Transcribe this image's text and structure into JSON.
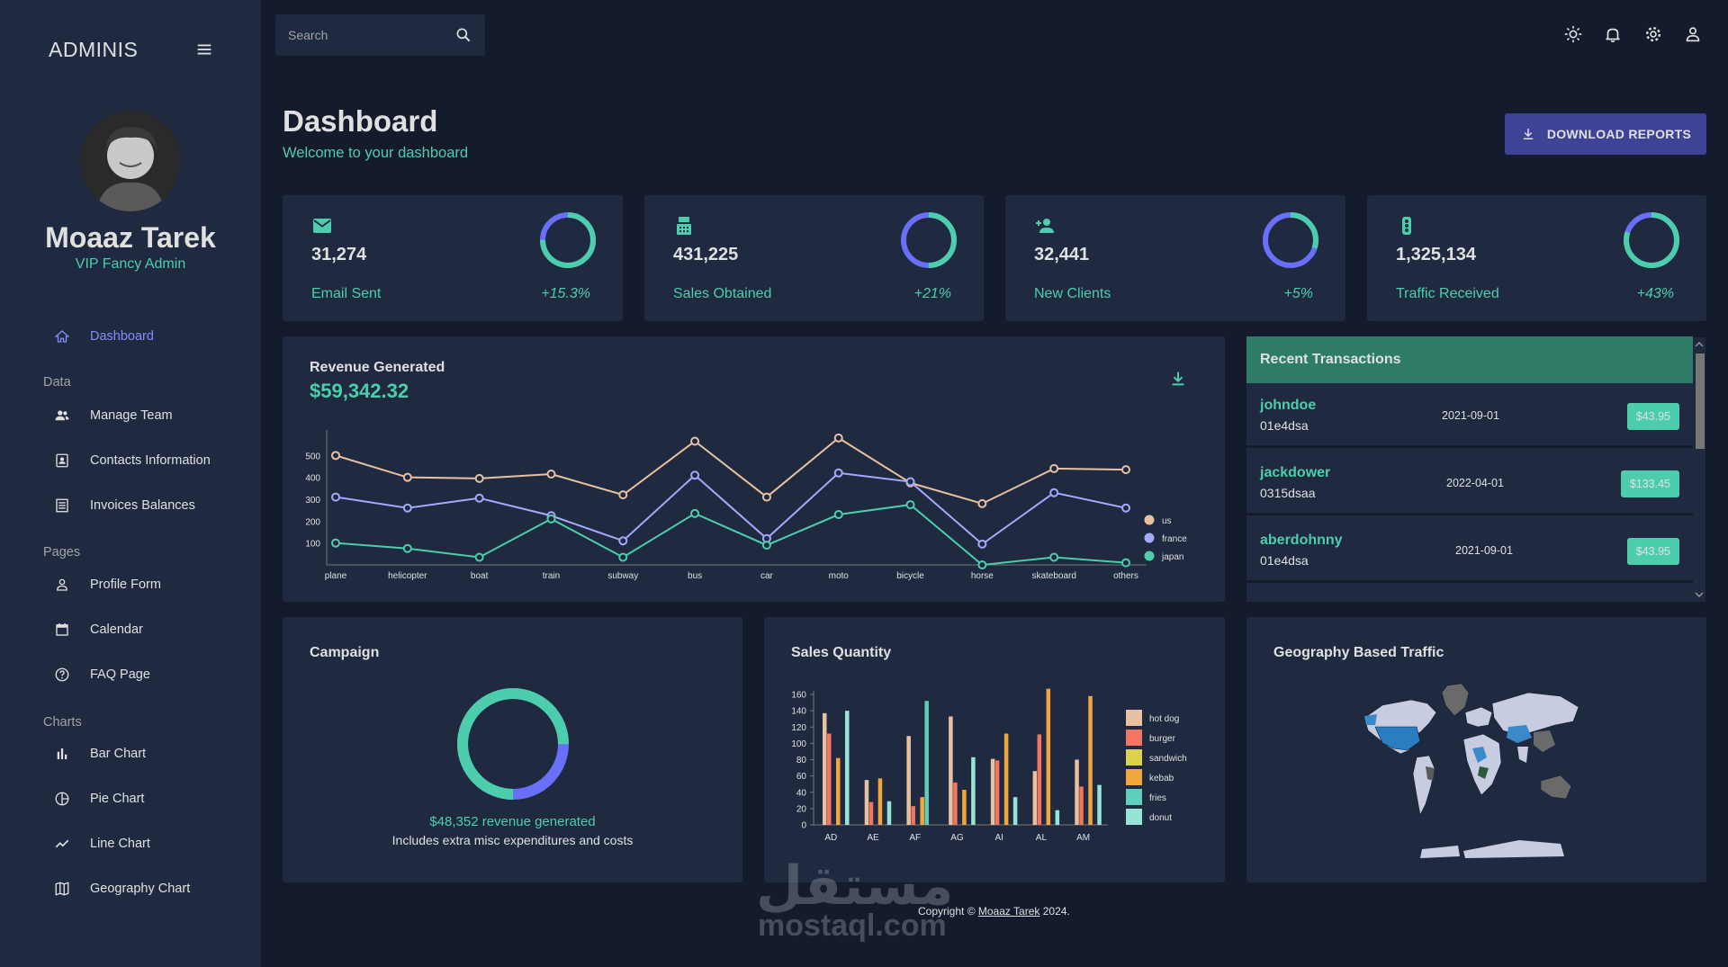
{
  "sidebar": {
    "brand": "ADMINIS",
    "user": {
      "name": "Moaaz Tarek",
      "role": "VIP Fancy Admin"
    },
    "items": [
      {
        "label": "Dashboard",
        "icon": "home-icon",
        "active": true
      },
      {
        "section": "Data"
      },
      {
        "label": "Manage Team",
        "icon": "people-icon"
      },
      {
        "label": "Contacts Information",
        "icon": "contacts-icon"
      },
      {
        "label": "Invoices Balances",
        "icon": "receipt-icon"
      },
      {
        "section": "Pages"
      },
      {
        "label": "Profile Form",
        "icon": "person-icon"
      },
      {
        "label": "Calendar",
        "icon": "calendar-icon"
      },
      {
        "label": "FAQ Page",
        "icon": "help-icon"
      },
      {
        "section": "Charts"
      },
      {
        "label": "Bar Chart",
        "icon": "bar-chart-icon"
      },
      {
        "label": "Pie Chart",
        "icon": "pie-chart-icon"
      },
      {
        "label": "Line Chart",
        "icon": "line-chart-icon"
      },
      {
        "label": "Geography Chart",
        "icon": "map-icon"
      }
    ]
  },
  "topbar": {
    "search_placeholder": "Search",
    "icons": [
      "light-mode-icon",
      "notifications-icon",
      "settings-icon",
      "account-icon"
    ]
  },
  "header": {
    "title": "Dashboard",
    "subtitle": "Welcome to your dashboard",
    "download_label": "DOWNLOAD REPORTS"
  },
  "stats": [
    {
      "value": "31,274",
      "label": "Email Sent",
      "increase": "+15.3%",
      "icon": "email-icon",
      "progress": 0.75
    },
    {
      "value": "431,225",
      "label": "Sales Obtained",
      "increase": "+21%",
      "icon": "point-of-sale-icon",
      "progress": 0.5
    },
    {
      "value": "32,441",
      "label": "New Clients",
      "increase": "+5%",
      "icon": "person-add-icon",
      "progress": 0.3
    },
    {
      "value": "1,325,134",
      "label": "Traffic Received",
      "increase": "+43%",
      "icon": "traffic-icon",
      "progress": 0.8
    }
  ],
  "revenue": {
    "title": "Revenue Generated",
    "amount": "$59,342.32"
  },
  "transactions": {
    "title": "Recent Transactions",
    "rows": [
      {
        "user": "johndoe",
        "txId": "01e4dsa",
        "date": "2021-09-01",
        "cost": "$43.95"
      },
      {
        "user": "jackdower",
        "txId": "0315dsaa",
        "date": "2022-04-01",
        "cost": "$133.45"
      },
      {
        "user": "aberdohnny",
        "txId": "01e4dsa",
        "date": "2021-09-01",
        "cost": "$43.95"
      }
    ]
  },
  "campaign": {
    "title": "Campaign",
    "revenue_text": "$48,352 revenue generated",
    "note": "Includes extra misc expenditures and costs",
    "progress": 0.75
  },
  "sales_quantity": {
    "title": "Sales Quantity"
  },
  "geography": {
    "title": "Geography Based Traffic"
  },
  "footer": {
    "text": "Copyright ©",
    "author": "Moaaz Tarek",
    "year": "2024."
  },
  "watermark": {
    "arabic": "مستقل",
    "latin": "mostaql.com"
  },
  "colors": {
    "accent_green": "#4cceac",
    "accent_blue": "#6870fa",
    "primary_bg": "#141b2d",
    "card_bg": "#1f2a40",
    "button_bg": "#3e4396",
    "header_green": "#2e7c67"
  },
  "chart_data": [
    {
      "type": "line",
      "title": "",
      "categories": [
        "plane",
        "helicopter",
        "boat",
        "train",
        "subway",
        "bus",
        "car",
        "moto",
        "bicycle",
        "horse",
        "skateboard",
        "others"
      ],
      "series": [
        {
          "name": "us",
          "color": "#e8c1a0",
          "values": [
            500,
            400,
            395,
            415,
            320,
            565,
            310,
            580,
            375,
            280,
            440,
            435
          ]
        },
        {
          "name": "france",
          "color": "#a4a9fc",
          "values": [
            310,
            260,
            305,
            225,
            110,
            410,
            120,
            420,
            380,
            95,
            330,
            260
          ]
        },
        {
          "name": "japan",
          "color": "#4cceac",
          "values": [
            100,
            75,
            35,
            210,
            35,
            235,
            90,
            230,
            275,
            0,
            35,
            10
          ]
        }
      ],
      "yticks": [
        100,
        200,
        300,
        400,
        500
      ],
      "ylim": [
        0,
        600
      ],
      "legend": "right"
    },
    {
      "type": "bar",
      "title": "",
      "categories": [
        "AD",
        "AE",
        "AF",
        "AG",
        "AI",
        "AL",
        "AM"
      ],
      "series": [
        {
          "name": "hot dog",
          "color": "#e8c1a0",
          "values": [
            137,
            55,
            109,
            133,
            81,
            66,
            80
          ]
        },
        {
          "name": "burger",
          "color": "#f47560",
          "values": [
            112,
            28,
            23,
            52,
            79,
            111,
            47
          ]
        },
        {
          "name": "sandwich",
          "color": "#dbd34a",
          "values": [
            0,
            0,
            0,
            0,
            0,
            0,
            0
          ]
        },
        {
          "name": "kebab",
          "color": "#f1a63b",
          "values": [
            82,
            57,
            34,
            43,
            112,
            167,
            158
          ]
        },
        {
          "name": "fries",
          "color": "#61cdbb",
          "values": [
            0,
            0,
            152,
            0,
            0,
            0,
            0
          ]
        },
        {
          "name": "donut",
          "color": "#97e3d5",
          "values": [
            140,
            29,
            0,
            83,
            34,
            18,
            49
          ]
        }
      ],
      "yticks": [
        0,
        20,
        40,
        60,
        80,
        100,
        120,
        140,
        160
      ],
      "ylim": [
        0,
        165
      ],
      "legend": "right"
    },
    {
      "type": "pie",
      "title": "",
      "values": [
        0.75,
        0.25
      ]
    }
  ]
}
